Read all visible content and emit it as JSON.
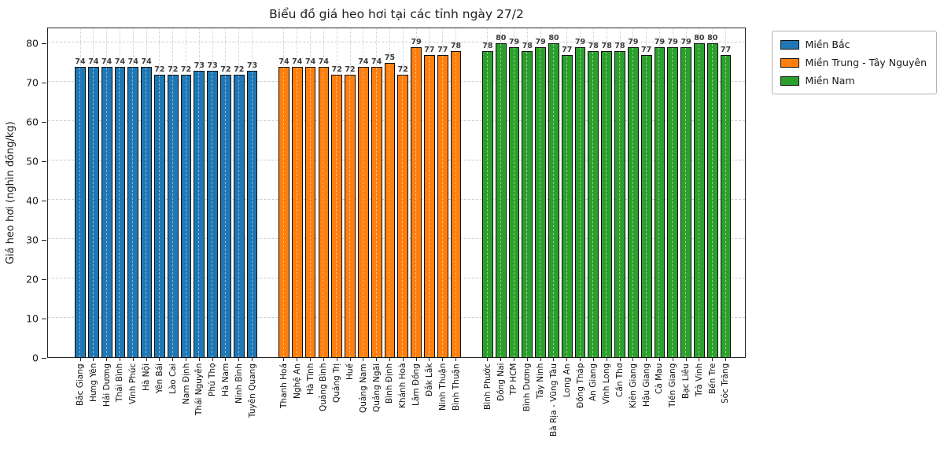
{
  "chart_data": {
    "type": "bar",
    "title": "Biểu đồ giá heo hơi tại các tỉnh ngày 27/2",
    "ylabel": "Giá heo hơi (nghìn đồng/kg)",
    "xlabel": "",
    "ylim": [
      0,
      84
    ],
    "yticks": [
      0,
      10,
      20,
      30,
      40,
      50,
      60,
      70,
      80
    ],
    "grid": true,
    "grid_style": "dashed",
    "bar_edge_color": "#101010",
    "legend_position": "outside upper right",
    "groups": [
      {
        "name": "Miền Bắc",
        "color": "#1f77b4",
        "categories": [
          "Bắc Giang",
          "Hưng Yên",
          "Hải Dương",
          "Thái Bình",
          "Vĩnh Phúc",
          "Hà Nội",
          "Yên Bái",
          "Lào Cai",
          "Nam Định",
          "Thái Nguyên",
          "Phú Thọ",
          "Hà Nam",
          "Ninh Bình",
          "Tuyên Quang"
        ],
        "values": [
          74,
          74,
          74,
          74,
          74,
          74,
          72,
          72,
          72,
          73,
          73,
          72,
          72,
          73
        ]
      },
      {
        "name": "Miền Trung - Tây Nguyên",
        "color": "#ff7f0e",
        "categories": [
          "Thanh Hoá",
          "Nghệ An",
          "Hà Tĩnh",
          "Quảng Bình",
          "Quảng Trị",
          "Huế",
          "Quảng Nam",
          "Quảng Ngãi",
          "Bình Định",
          "Khánh Hoà",
          "Lâm Đồng",
          "Đắk Lắk",
          "Ninh Thuận",
          "Bình Thuận"
        ],
        "values": [
          74,
          74,
          74,
          74,
          72,
          72,
          74,
          74,
          75,
          72,
          79,
          77,
          77,
          78
        ]
      },
      {
        "name": "Miền Nam",
        "color": "#2ca02c",
        "categories": [
          "Bình Phước",
          "Đồng Nai",
          "TP HCM",
          "Bình Dương",
          "Tây Ninh",
          "Bà Rịa - Vũng Tàu",
          "Long An",
          "Đồng Tháp",
          "An Giang",
          "Vĩnh Long",
          "Cần Thơ",
          "Kiên Giang",
          "Hậu Giang",
          "Cà Mau",
          "Tiền Giang",
          "Bạc Liêu",
          "Trà Vinh",
          "Bến Tre",
          "Sóc Trăng"
        ],
        "values": [
          78,
          80,
          79,
          78,
          79,
          80,
          77,
          79,
          78,
          78,
          78,
          79,
          77,
          79,
          79,
          79,
          80,
          80,
          77
        ]
      }
    ]
  }
}
